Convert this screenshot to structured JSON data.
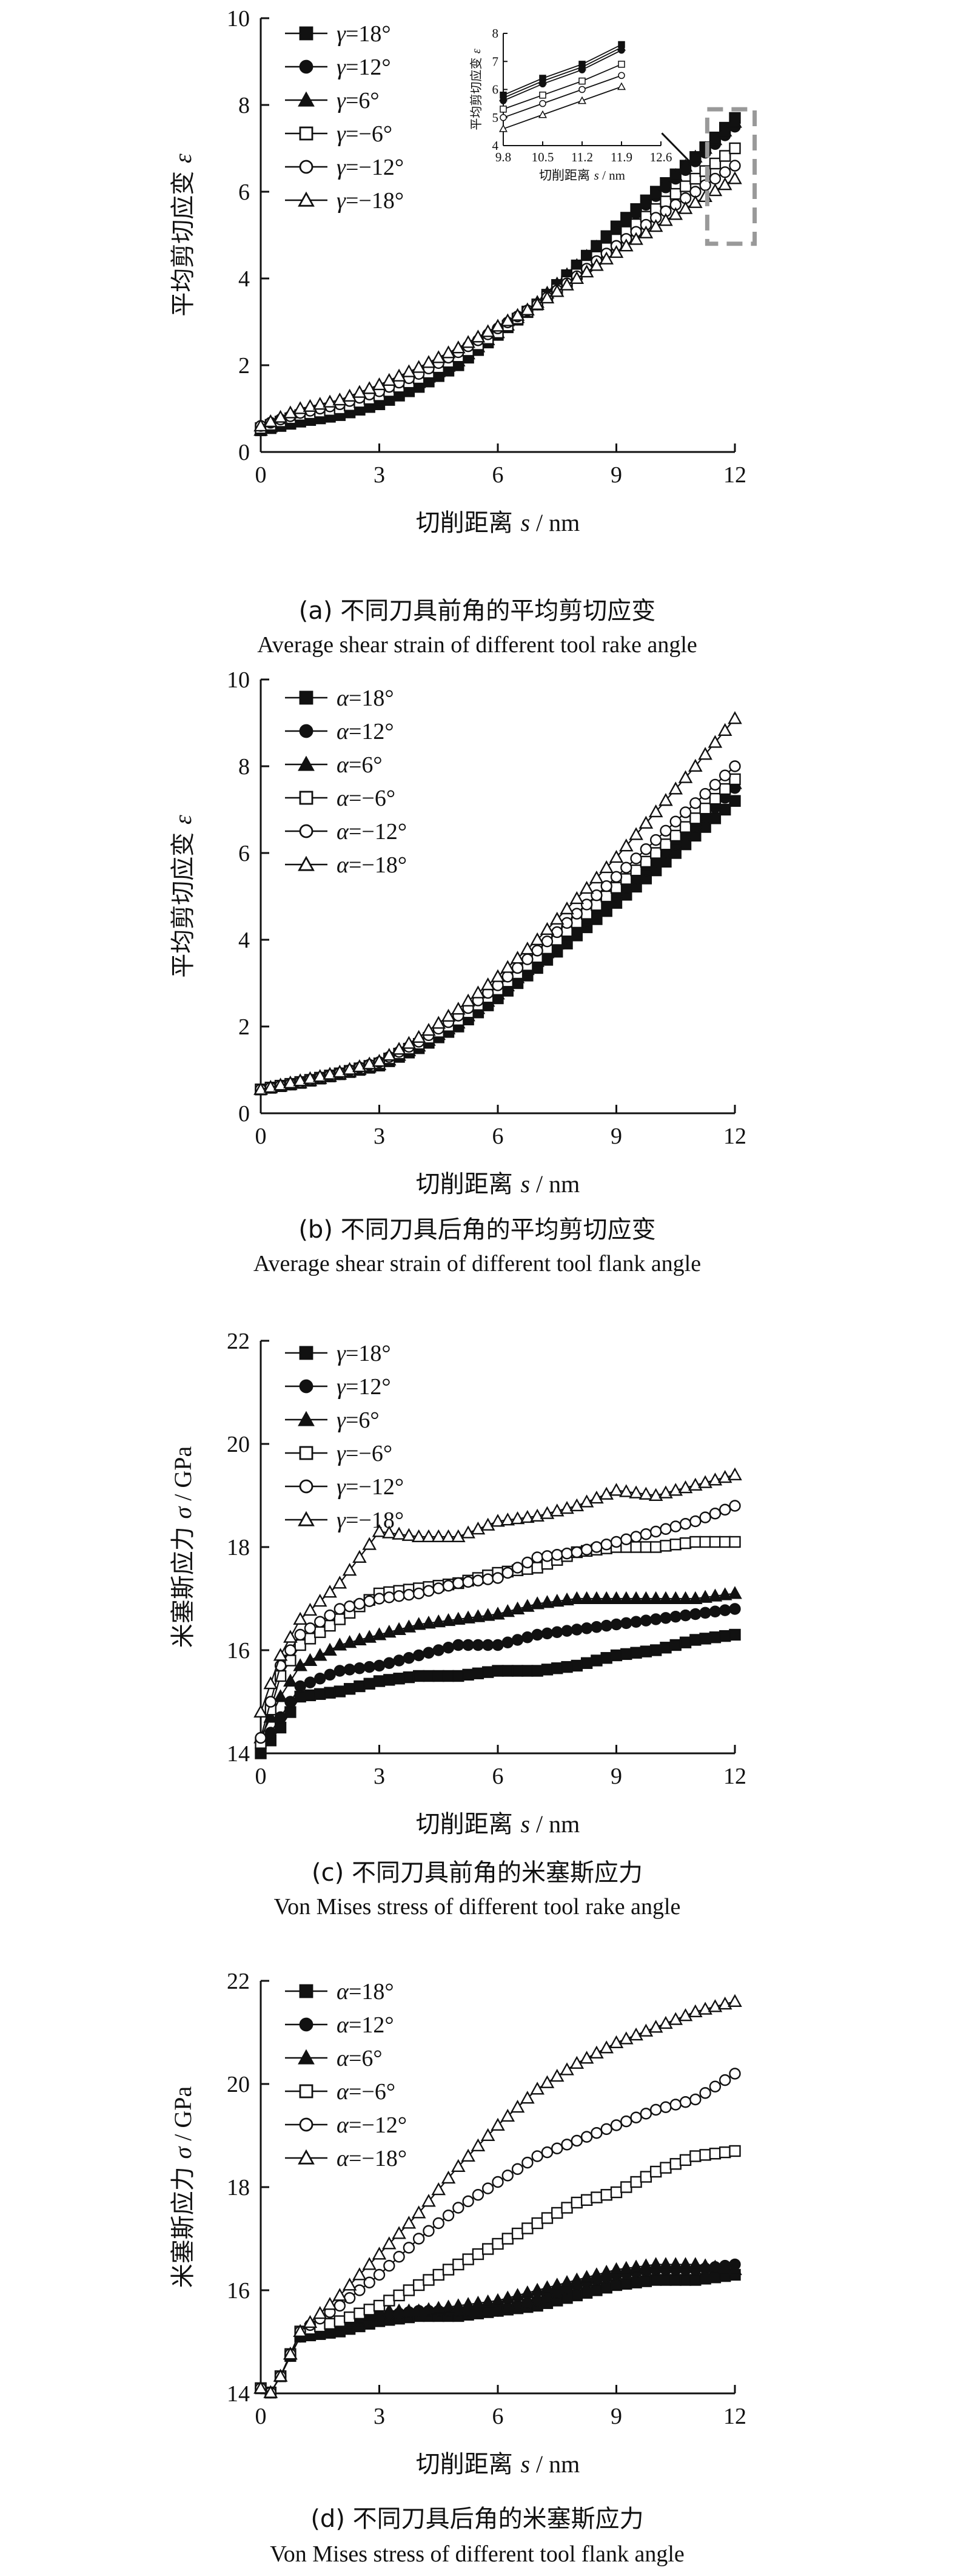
{
  "chart_data": [
    {
      "type": "scatter",
      "panel": "a",
      "xlabel": "切削距离 s / nm",
      "ylabel": "平均剪切应变 ε",
      "xlim": [
        0,
        12
      ],
      "ylim": [
        0,
        10
      ],
      "xticks": [
        0,
        3,
        6,
        9,
        12
      ],
      "yticks": [
        0,
        2,
        4,
        6,
        8,
        10
      ],
      "caption_cn": "(a) 不同刀具前角的平均剪切应变",
      "caption_en": "Average shear strain of different tool rake angle",
      "legend_position": "top-left",
      "series": [
        {
          "name": "γ=18°",
          "marker": "square-filled",
          "x": [
            0,
            1,
            2,
            3,
            4,
            5,
            6,
            7,
            8,
            9,
            10,
            11,
            12
          ],
          "y": [
            0.5,
            0.7,
            0.85,
            1.1,
            1.5,
            2.0,
            2.7,
            3.4,
            4.3,
            5.2,
            6.0,
            6.8,
            7.7
          ]
        },
        {
          "name": "γ=12°",
          "marker": "circle-filled",
          "x": [
            0,
            1,
            2,
            3,
            4,
            5,
            6,
            7,
            8,
            9,
            10,
            11,
            12
          ],
          "y": [
            0.5,
            0.75,
            0.9,
            1.15,
            1.55,
            2.05,
            2.7,
            3.4,
            4.25,
            5.1,
            5.9,
            6.7,
            7.5
          ]
        },
        {
          "name": "γ=6°",
          "marker": "triangle-filled",
          "x": [
            0,
            1,
            2,
            3,
            4,
            5,
            6,
            7,
            8,
            9,
            10,
            11,
            12
          ],
          "y": [
            0.5,
            0.8,
            0.95,
            1.2,
            1.6,
            2.1,
            2.75,
            3.45,
            4.3,
            5.15,
            5.95,
            6.8,
            7.6
          ]
        },
        {
          "name": "γ=−6°",
          "marker": "square-open",
          "x": [
            0,
            1,
            2,
            3,
            4,
            5,
            6,
            7,
            8,
            9,
            10,
            11,
            12
          ],
          "y": [
            0.55,
            0.85,
            1.0,
            1.3,
            1.7,
            2.2,
            2.75,
            3.4,
            4.1,
            4.9,
            5.6,
            6.3,
            7.0
          ]
        },
        {
          "name": "γ=−12°",
          "marker": "circle-open",
          "x": [
            0,
            1,
            2,
            3,
            4,
            5,
            6,
            7,
            8,
            9,
            10,
            11,
            12
          ],
          "y": [
            0.6,
            0.9,
            1.1,
            1.4,
            1.8,
            2.3,
            2.85,
            3.4,
            4.05,
            4.75,
            5.4,
            6.0,
            6.6
          ]
        },
        {
          "name": "γ=−18°",
          "marker": "triangle-open",
          "x": [
            0,
            1,
            2,
            3,
            4,
            5,
            6,
            7,
            8,
            9,
            10,
            11,
            12
          ],
          "y": [
            0.6,
            1.0,
            1.2,
            1.55,
            1.95,
            2.4,
            2.9,
            3.4,
            4.0,
            4.6,
            5.2,
            5.75,
            6.3
          ]
        }
      ],
      "inset": {
        "xlabel": "切削距离 s / nm",
        "ylabel": "平均剪切应变 ε",
        "xlim": [
          9.8,
          12.6
        ],
        "ylim": [
          4,
          8
        ],
        "xticks": [
          "9.8",
          "10.5",
          "11.2",
          "11.9",
          "12.6"
        ],
        "yticks": [
          "4",
          "5",
          "6",
          "7",
          "8"
        ],
        "series": [
          {
            "name": "γ=18°",
            "marker": "square-filled",
            "x": [
              9.8,
              10.5,
              11.2,
              11.9
            ],
            "y": [
              5.8,
              6.4,
              6.9,
              7.6
            ]
          },
          {
            "name": "γ=12°",
            "marker": "circle-filled",
            "x": [
              9.8,
              10.5,
              11.2,
              11.9
            ],
            "y": [
              5.6,
              6.2,
              6.7,
              7.4
            ]
          },
          {
            "name": "γ=6°",
            "marker": "triangle-filled",
            "x": [
              9.8,
              10.5,
              11.2,
              11.9
            ],
            "y": [
              5.7,
              6.3,
              6.8,
              7.5
            ]
          },
          {
            "name": "γ=−6°",
            "marker": "square-open",
            "x": [
              9.8,
              10.5,
              11.2,
              11.9
            ],
            "y": [
              5.3,
              5.8,
              6.3,
              6.9
            ]
          },
          {
            "name": "γ=−12°",
            "marker": "circle-open",
            "x": [
              9.8,
              10.5,
              11.2,
              11.9
            ],
            "y": [
              5.0,
              5.5,
              6.0,
              6.5
            ]
          },
          {
            "name": "γ=−18°",
            "marker": "triangle-open",
            "x": [
              9.8,
              10.5,
              11.2,
              11.9
            ],
            "y": [
              4.6,
              5.1,
              5.6,
              6.1
            ]
          }
        ]
      }
    },
    {
      "type": "scatter",
      "panel": "b",
      "xlabel": "切削距离 s / nm",
      "ylabel": "平均剪切应变 ε",
      "xlim": [
        0,
        12
      ],
      "ylim": [
        0,
        10
      ],
      "xticks": [
        0,
        3,
        6,
        9,
        12
      ],
      "yticks": [
        0,
        2,
        4,
        6,
        8,
        10
      ],
      "caption_cn": "(b) 不同刀具后角的平均剪切应变",
      "caption_en": "Average shear strain of different tool flank angle",
      "legend_position": "top-left",
      "series": [
        {
          "name": "α=18°",
          "marker": "square-filled",
          "x": [
            0,
            1,
            2,
            3,
            4,
            5,
            6,
            7,
            8,
            9,
            10,
            11,
            12
          ],
          "y": [
            0.55,
            0.7,
            0.9,
            1.1,
            1.5,
            2.0,
            2.65,
            3.35,
            4.1,
            4.85,
            5.6,
            6.4,
            7.2
          ]
        },
        {
          "name": "α=12°",
          "marker": "circle-filled",
          "x": [
            0,
            1,
            2,
            3,
            4,
            5,
            6,
            7,
            8,
            9,
            10,
            11,
            12
          ],
          "y": [
            0.55,
            0.7,
            0.9,
            1.12,
            1.52,
            2.05,
            2.7,
            3.45,
            4.2,
            5.0,
            5.8,
            6.6,
            7.5
          ]
        },
        {
          "name": "α=6°",
          "marker": "triangle-filled",
          "x": [
            0,
            1,
            2,
            3,
            4,
            5,
            6,
            7,
            8,
            9,
            10,
            11,
            12
          ],
          "y": [
            0.55,
            0.7,
            0.9,
            1.12,
            1.55,
            2.08,
            2.75,
            3.5,
            4.3,
            5.1,
            5.9,
            6.7,
            7.6
          ]
        },
        {
          "name": "α=−6°",
          "marker": "square-open",
          "x": [
            0,
            1,
            2,
            3,
            4,
            5,
            6,
            7,
            8,
            9,
            10,
            11,
            12
          ],
          "y": [
            0.55,
            0.72,
            0.92,
            1.15,
            1.6,
            2.15,
            2.85,
            3.6,
            4.4,
            5.2,
            6.0,
            6.8,
            7.7
          ]
        },
        {
          "name": "α=−12°",
          "marker": "circle-open",
          "x": [
            0,
            1,
            2,
            3,
            4,
            5,
            6,
            7,
            8,
            9,
            10,
            11,
            12
          ],
          "y": [
            0.55,
            0.72,
            0.93,
            1.18,
            1.65,
            2.25,
            2.95,
            3.75,
            4.6,
            5.45,
            6.3,
            7.15,
            8.0
          ]
        },
        {
          "name": "α=−18°",
          "marker": "triangle-open",
          "x": [
            0,
            1,
            2,
            3,
            4,
            5,
            6,
            7,
            8,
            9,
            10,
            11,
            12
          ],
          "y": [
            0.55,
            0.75,
            0.95,
            1.2,
            1.75,
            2.4,
            3.15,
            4.0,
            4.95,
            5.9,
            6.95,
            8.0,
            9.1
          ]
        }
      ]
    },
    {
      "type": "scatter",
      "panel": "c",
      "xlabel": "切削距离 s / nm",
      "ylabel": "米塞斯应力 σ / GPa",
      "xlim": [
        0,
        12
      ],
      "ylim": [
        14,
        22
      ],
      "xticks": [
        0,
        3,
        6,
        9,
        12
      ],
      "yticks": [
        14,
        16,
        18,
        20,
        22
      ],
      "caption_cn": "(c) 不同刀具前角的米塞斯应力",
      "caption_en": "Von Mises stress of different tool rake angle",
      "legend_position": "top-left",
      "series": [
        {
          "name": "γ=18°",
          "marker": "square-filled",
          "x": [
            0,
            0.5,
            1,
            2,
            3,
            4,
            5,
            6,
            7,
            8,
            9,
            10,
            11,
            12
          ],
          "y": [
            14.0,
            14.5,
            15.1,
            15.2,
            15.4,
            15.5,
            15.5,
            15.6,
            15.6,
            15.7,
            15.9,
            16.0,
            16.2,
            16.3
          ]
        },
        {
          "name": "γ=12°",
          "marker": "circle-filled",
          "x": [
            0,
            0.5,
            1,
            2,
            3,
            4,
            5,
            6,
            7,
            8,
            9,
            10,
            11,
            12
          ],
          "y": [
            14.1,
            14.7,
            15.3,
            15.6,
            15.7,
            15.9,
            16.1,
            16.1,
            16.3,
            16.4,
            16.5,
            16.6,
            16.7,
            16.8
          ]
        },
        {
          "name": "γ=6°",
          "marker": "triangle-filled",
          "x": [
            0,
            0.5,
            1,
            2,
            3,
            4,
            5,
            6,
            7,
            8,
            9,
            10,
            11,
            12
          ],
          "y": [
            14.3,
            15.1,
            15.7,
            16.1,
            16.3,
            16.5,
            16.6,
            16.7,
            16.9,
            17.0,
            17.0,
            17.0,
            17.0,
            17.1
          ]
        },
        {
          "name": "γ=−6°",
          "marker": "square-open",
          "x": [
            0,
            0.5,
            1,
            2,
            3,
            4,
            5,
            6,
            7,
            8,
            9,
            10,
            11,
            12
          ],
          "y": [
            14.2,
            15.5,
            16.1,
            16.6,
            17.1,
            17.2,
            17.3,
            17.5,
            17.6,
            17.9,
            18.0,
            18.0,
            18.1,
            18.1
          ]
        },
        {
          "name": "γ=−12°",
          "marker": "circle-open",
          "x": [
            0,
            0.5,
            1,
            2,
            3,
            4,
            5,
            6,
            7,
            8,
            9,
            10,
            11,
            12
          ],
          "y": [
            14.3,
            15.7,
            16.3,
            16.8,
            17.0,
            17.1,
            17.3,
            17.4,
            17.8,
            17.9,
            18.1,
            18.3,
            18.5,
            18.8
          ]
        },
        {
          "name": "γ=−18°",
          "marker": "triangle-open",
          "x": [
            0,
            0.5,
            1,
            2,
            3,
            4,
            5,
            6,
            7,
            8,
            9,
            10,
            11,
            12
          ],
          "y": [
            14.8,
            15.9,
            16.6,
            17.3,
            18.3,
            18.2,
            18.2,
            18.5,
            18.6,
            18.8,
            19.1,
            19.0,
            19.2,
            19.4
          ]
        }
      ]
    },
    {
      "type": "scatter",
      "panel": "d",
      "xlabel": "切削距离 s / nm",
      "ylabel": "米塞斯应力 σ / GPa",
      "xlim": [
        0,
        12
      ],
      "ylim": [
        14,
        22
      ],
      "xticks": [
        0,
        3,
        6,
        9,
        12
      ],
      "yticks": [
        14,
        16,
        18,
        20,
        22
      ],
      "caption_cn": "(d) 不同刀具后角的米塞斯应力",
      "caption_en": "Von Mises stress of different tool flank angle",
      "legend_position": "top-left",
      "series": [
        {
          "name": "α=18°",
          "marker": "square-filled",
          "x": [
            0,
            0.3,
            0.6,
            1,
            2,
            3,
            4,
            5,
            6,
            7,
            8,
            9,
            10,
            11,
            12
          ],
          "y": [
            14.1,
            14.0,
            14.5,
            15.1,
            15.2,
            15.4,
            15.5,
            15.5,
            15.6,
            15.7,
            15.9,
            16.1,
            16.2,
            16.2,
            16.3
          ]
        },
        {
          "name": "α=12°",
          "marker": "circle-filled",
          "x": [
            0,
            0.3,
            0.6,
            1,
            2,
            3,
            4,
            5,
            6,
            7,
            8,
            9,
            10,
            11,
            12
          ],
          "y": [
            14.1,
            14.0,
            14.5,
            15.1,
            15.3,
            15.5,
            15.6,
            15.6,
            15.6,
            15.8,
            16.1,
            16.3,
            16.4,
            16.4,
            16.5
          ]
        },
        {
          "name": "α=6°",
          "marker": "triangle-filled",
          "x": [
            0,
            0.3,
            0.6,
            1,
            2,
            3,
            4,
            5,
            6,
            7,
            8,
            9,
            10,
            11,
            12
          ],
          "y": [
            14.1,
            14.0,
            14.5,
            15.2,
            15.3,
            15.6,
            15.6,
            15.7,
            15.8,
            16.0,
            16.2,
            16.4,
            16.5,
            16.5,
            16.4
          ]
        },
        {
          "name": "α=−6°",
          "marker": "square-open",
          "x": [
            0,
            0.3,
            0.6,
            1,
            2,
            3,
            4,
            5,
            6,
            7,
            8,
            9,
            10,
            11,
            12
          ],
          "y": [
            14.1,
            14.0,
            14.5,
            15.2,
            15.4,
            15.7,
            16.1,
            16.5,
            16.9,
            17.3,
            17.7,
            17.9,
            18.3,
            18.6,
            18.7
          ]
        },
        {
          "name": "α=−12°",
          "marker": "circle-open",
          "x": [
            0,
            0.3,
            0.6,
            1,
            2,
            3,
            4,
            5,
            6,
            7,
            8,
            9,
            10,
            11,
            12
          ],
          "y": [
            14.1,
            14.0,
            14.5,
            15.2,
            15.7,
            16.3,
            17.0,
            17.6,
            18.1,
            18.6,
            18.9,
            19.2,
            19.5,
            19.7,
            20.2
          ]
        },
        {
          "name": "α=−18°",
          "marker": "triangle-open",
          "x": [
            0,
            0.3,
            0.6,
            1,
            2,
            3,
            4,
            5,
            6,
            7,
            8,
            9,
            10,
            11,
            12
          ],
          "y": [
            14.1,
            14.0,
            14.5,
            15.2,
            15.9,
            16.7,
            17.5,
            18.4,
            19.2,
            19.9,
            20.4,
            20.8,
            21.1,
            21.4,
            21.6
          ]
        }
      ]
    }
  ]
}
